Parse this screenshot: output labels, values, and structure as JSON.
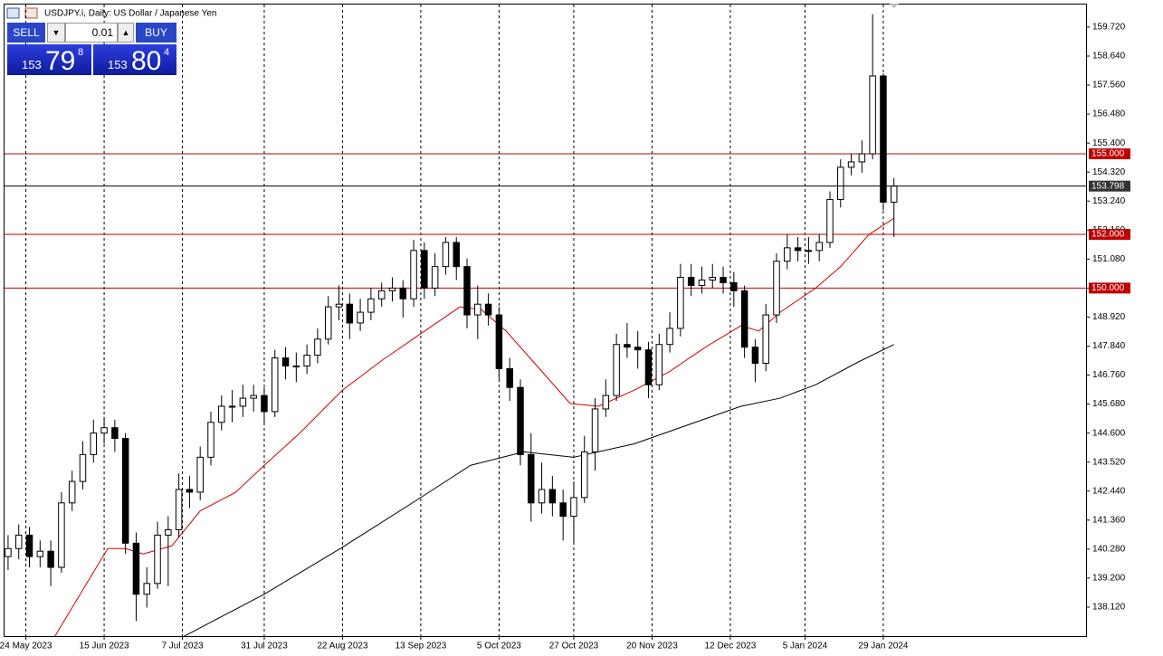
{
  "chart_data": {
    "type": "candlestick",
    "title": "USDJPY.i, Daily:  US Dollar / Japanese Yen",
    "trade_panel": {
      "sell": "SELL",
      "buy": "BUY",
      "lot": "0.01",
      "bid": {
        "big": "153",
        "main": "79",
        "small": "8"
      },
      "ask": {
        "big": "153",
        "main": "80",
        "small": "4"
      }
    },
    "up_color": "#ffffff",
    "down_color": "#000000",
    "outline_color": "#000000",
    "x": [
      1,
      4,
      7,
      10,
      13,
      16,
      19,
      22,
      25,
      28,
      31,
      34,
      37,
      40,
      43,
      46,
      49,
      52,
      55,
      58,
      61,
      64,
      67,
      70,
      73,
      76,
      79,
      82,
      85,
      88,
      91,
      94,
      97,
      100,
      103,
      106,
      109,
      112,
      115,
      118,
      121,
      124,
      127,
      130,
      133,
      136,
      139,
      142,
      145,
      148,
      151,
      154,
      157,
      160,
      163,
      166,
      169,
      172,
      175,
      178,
      181,
      184,
      187,
      190,
      193,
      196,
      199,
      202,
      205,
      208,
      211,
      214,
      217,
      220,
      223,
      226,
      229,
      232,
      235,
      238,
      241,
      244,
      247,
      250
    ],
    "open": [
      140.0,
      140.3,
      140.8,
      140.0,
      140.2,
      139.6,
      142.0,
      142.8,
      143.8,
      144.6,
      144.8,
      144.4,
      140.5,
      138.6,
      139.0,
      140.8,
      141.0,
      142.5,
      142.4,
      143.7,
      145.0,
      145.6,
      145.6,
      145.9,
      146.0,
      145.4,
      147.4,
      147.1,
      147.1,
      147.5,
      148.1,
      149.3,
      149.4,
      148.7,
      149.1,
      149.6,
      149.9,
      150.0,
      149.6,
      151.4,
      150.0,
      150.8,
      151.7,
      150.8,
      149.0,
      149.4,
      149.0,
      147.0,
      146.3,
      143.8,
      142.0,
      142.5,
      142.0,
      141.5,
      142.2,
      143.9,
      145.5,
      146.0,
      147.9,
      147.8,
      147.7,
      146.4,
      147.9,
      148.5,
      150.4,
      150.1,
      150.3,
      150.4,
      150.2,
      149.9,
      147.8,
      147.2,
      149.0,
      151.0,
      151.5,
      151.4,
      151.4,
      151.7,
      153.3,
      154.5,
      154.7,
      155.0,
      157.9,
      153.2
    ],
    "high": [
      140.8,
      141.2,
      141.1,
      140.6,
      140.6,
      142.4,
      143.2,
      144.3,
      145.1,
      145.2,
      145.1,
      144.6,
      140.9,
      139.6,
      141.3,
      141.5,
      143.1,
      143.0,
      144.1,
      145.4,
      146.0,
      146.2,
      146.4,
      146.4,
      146.3,
      147.7,
      147.8,
      147.6,
      147.9,
      148.5,
      149.7,
      150.1,
      149.8,
      149.6,
      150.0,
      150.2,
      150.4,
      150.3,
      151.8,
      151.7,
      151.3,
      151.9,
      151.9,
      151.1,
      150.1,
      149.8,
      149.3,
      147.4,
      146.6,
      144.6,
      143.5,
      143.0,
      142.5,
      142.8,
      144.5,
      145.9,
      146.6,
      148.3,
      148.7,
      148.4,
      148.0,
      148.3,
      149.1,
      150.9,
      150.9,
      150.8,
      150.9,
      150.8,
      150.6,
      150.1,
      148.1,
      149.4,
      151.3,
      152.0,
      151.9,
      151.9,
      152.0,
      153.6,
      154.8,
      155.0,
      155.5,
      160.2,
      158.0,
      154.1
    ],
    "low": [
      139.5,
      139.9,
      139.6,
      139.6,
      138.9,
      139.4,
      141.7,
      142.5,
      143.5,
      144.2,
      143.9,
      140.1,
      137.6,
      138.1,
      138.8,
      138.9,
      140.7,
      141.8,
      142.1,
      143.4,
      144.7,
      145.0,
      145.2,
      145.4,
      144.9,
      145.2,
      146.6,
      146.5,
      146.8,
      147.2,
      147.9,
      148.8,
      148.1,
      148.4,
      148.8,
      149.3,
      149.5,
      148.9,
      149.3,
      149.6,
      149.7,
      150.5,
      150.3,
      148.5,
      148.1,
      148.6,
      146.6,
      145.8,
      143.4,
      141.3,
      141.6,
      141.5,
      140.6,
      140.5,
      142.0,
      143.2,
      145.2,
      145.8,
      147.4,
      147.0,
      145.9,
      146.2,
      147.6,
      148.2,
      149.7,
      149.8,
      150.0,
      149.8,
      149.3,
      147.4,
      146.5,
      146.9,
      148.7,
      150.7,
      151.0,
      150.9,
      151.0,
      151.5,
      153.0,
      154.2,
      154.3,
      154.8,
      152.9,
      151.9
    ],
    "close": [
      140.3,
      140.8,
      140.0,
      140.2,
      139.6,
      142.0,
      142.8,
      143.8,
      144.6,
      144.8,
      144.4,
      140.5,
      138.6,
      139.0,
      140.8,
      141.0,
      142.5,
      142.4,
      143.7,
      145.0,
      145.6,
      145.6,
      145.9,
      146.0,
      145.4,
      147.4,
      147.1,
      147.1,
      147.5,
      148.1,
      149.3,
      149.4,
      148.7,
      149.1,
      149.6,
      149.9,
      150.0,
      149.6,
      151.4,
      150.0,
      150.8,
      151.7,
      150.8,
      149.0,
      149.4,
      149.0,
      147.0,
      146.3,
      143.8,
      142.0,
      142.5,
      142.0,
      141.5,
      142.2,
      143.9,
      145.5,
      146.0,
      147.9,
      147.8,
      147.7,
      146.4,
      147.9,
      148.5,
      150.4,
      150.1,
      150.3,
      150.4,
      150.2,
      149.9,
      147.8,
      147.2,
      149.0,
      151.0,
      151.5,
      151.4,
      151.4,
      151.7,
      153.3,
      154.5,
      154.7,
      155.0,
      157.9,
      153.2,
      153.8
    ],
    "ma": [
      {
        "color": "#d00000",
        "x": [
          14,
          24,
          29,
          34,
          39,
          47,
          55,
          65,
          73,
          83,
          95,
          106,
          117,
          128,
          134,
          141,
          151,
          159,
          167,
          177,
          187,
          197,
          207,
          212,
          218,
          228,
          235,
          243,
          250
        ],
        "values": [
          137.0,
          139.2,
          140.3,
          140.3,
          140.1,
          140.4,
          141.7,
          142.4,
          143.4,
          144.6,
          146.2,
          147.3,
          148.3,
          149.3,
          149.2,
          148.4,
          146.9,
          145.7,
          145.6,
          146.2,
          146.9,
          147.8,
          148.6,
          148.4,
          149.1,
          150.0,
          150.8,
          152.0,
          152.6
        ]
      },
      {
        "color": "#000000",
        "x": [
          50,
          73,
          95,
          117,
          131,
          146,
          160,
          177,
          192,
          207,
          218,
          228,
          240,
          250
        ],
        "values": [
          137.0,
          138.6,
          140.35,
          142.2,
          143.4,
          143.9,
          143.7,
          144.2,
          144.9,
          145.6,
          145.9,
          146.4,
          147.25,
          147.9
        ]
      }
    ],
    "levels": [
      {
        "value": 155,
        "label": "155.000",
        "color": "#c00000"
      },
      {
        "value": 152,
        "label": "152.000",
        "color": "#c00000"
      },
      {
        "value": 150,
        "label": "150.000",
        "color": "#c00000"
      }
    ],
    "current_price": {
      "value": 153.798,
      "label": "153.798",
      "color": "#000000"
    },
    "ylim": [
      137.04,
      160.56
    ],
    "yticks": [
      {
        "value": 159.72,
        "label": "159.720"
      },
      {
        "value": 158.64,
        "label": "158.640"
      },
      {
        "value": 157.56,
        "label": "157.560"
      },
      {
        "value": 156.48,
        "label": "156.480"
      },
      {
        "value": 155.4,
        "label": "155.400"
      },
      {
        "value": 154.32,
        "label": "154.320"
      },
      {
        "value": 153.24,
        "label": "153.240"
      },
      {
        "value": 152.16,
        "label": "152.160"
      },
      {
        "value": 151.08,
        "label": "151.080"
      },
      {
        "value": 150,
        "label": "150.000"
      },
      {
        "value": 148.92,
        "label": "148.920"
      },
      {
        "value": 147.84,
        "label": "147.840"
      },
      {
        "value": 146.76,
        "label": "146.760"
      },
      {
        "value": 145.68,
        "label": "145.680"
      },
      {
        "value": 144.6,
        "label": "144.600"
      },
      {
        "value": 143.52,
        "label": "143.520"
      },
      {
        "value": 142.44,
        "label": "142.440"
      },
      {
        "value": 141.36,
        "label": "141.360"
      },
      {
        "value": 140.28,
        "label": "140.280"
      },
      {
        "value": 139.2,
        "label": "139.200"
      },
      {
        "value": 138.12,
        "label": "138.120"
      }
    ],
    "xlim": [
      0,
      304
    ],
    "xticks": [
      {
        "value": 6,
        "label": "24 May 2023"
      },
      {
        "value": 28,
        "label": "15 Jun 2023"
      },
      {
        "value": 50,
        "label": "7 Jul 2023"
      },
      {
        "value": 73,
        "label": "31 Jul 2023"
      },
      {
        "value": 95,
        "label": "22 Aug 2023"
      },
      {
        "value": 117,
        "label": "13 Sep 2023"
      },
      {
        "value": 139,
        "label": "5 Oct 2023"
      },
      {
        "value": 160,
        "label": "27 Oct 2023"
      },
      {
        "value": 182,
        "label": "20 Nov 2023"
      },
      {
        "value": 204,
        "label": "12 Dec 2023"
      },
      {
        "value": 225,
        "label": "5 Jan 2024"
      },
      {
        "value": 247,
        "label": "29 Jan 2024"
      }
    ],
    "grid": true
  }
}
